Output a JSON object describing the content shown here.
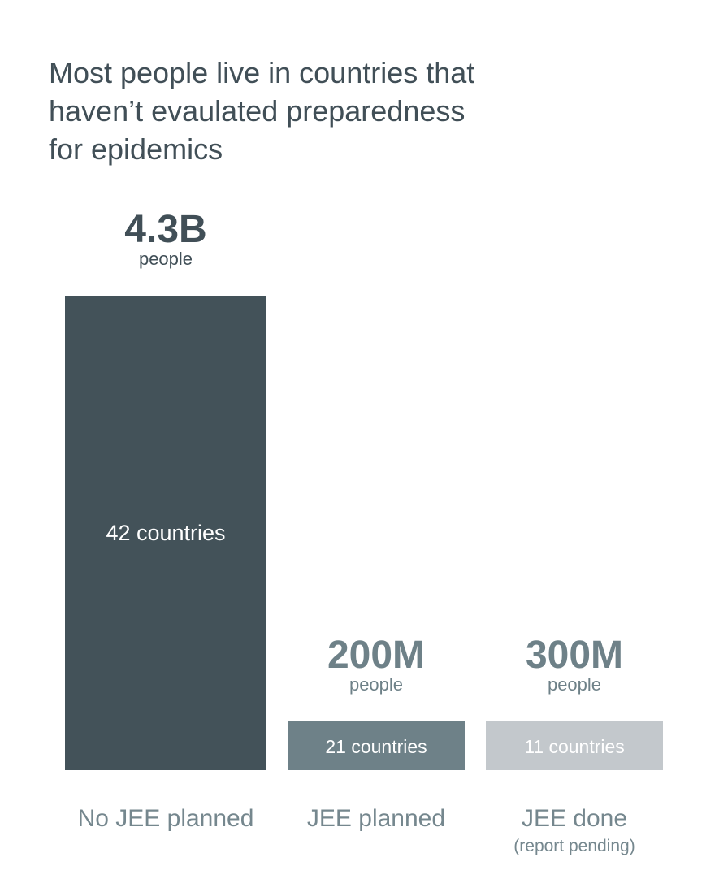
{
  "chart_data": {
    "type": "bar",
    "title": "Most people live in countries that\nhaven’t evaulated preparedness\nfor epidemics",
    "categories": [
      "No JEE planned",
      "JEE planned",
      "JEE done"
    ],
    "category_sublabels": [
      "",
      "",
      "(report pending)"
    ],
    "values": [
      4300,
      200,
      300
    ],
    "value_unit": "million people",
    "value_labels": [
      "4.3B",
      "200M",
      "300M"
    ],
    "value_sublabel": "people",
    "bar_labels": [
      "42 countries",
      "21 countries",
      "11 countries"
    ],
    "colors": [
      "#435259",
      "#6e8188",
      "#c3c8cc"
    ],
    "bar_text_colors": [
      "#ffffff",
      "#ffffff",
      "#ffffff"
    ],
    "value_label_colors": [
      "#414f57",
      "#6e8188",
      "#6e8188"
    ],
    "category_label_color": "#75878e",
    "grid": false,
    "legend": "none"
  }
}
